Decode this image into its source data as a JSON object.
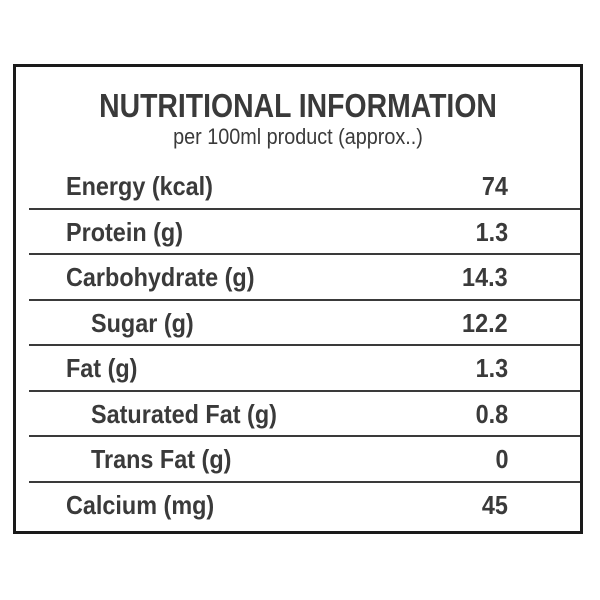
{
  "panel": {
    "title": "NUTRITIONAL INFORMATION",
    "subtitle": "per 100ml product (approx..)"
  },
  "rows": [
    {
      "label": "Energy (kcal)",
      "value": "74",
      "indent": false
    },
    {
      "label": "Protein (g)",
      "value": "1.3",
      "indent": false
    },
    {
      "label": "Carbohydrate (g)",
      "value": "14.3",
      "indent": false
    },
    {
      "label": "Sugar (g)",
      "value": "12.2",
      "indent": true
    },
    {
      "label": "Fat (g)",
      "value": "1.3",
      "indent": false
    },
    {
      "label": "Saturated Fat (g)",
      "value": "0.8",
      "indent": true
    },
    {
      "label": "Trans Fat (g)",
      "value": "0",
      "indent": true
    },
    {
      "label": "Calcium (mg)",
      "value": "45",
      "indent": false
    }
  ],
  "colors": {
    "text": "#3a3a3a",
    "border": "#1a1a1a",
    "background": "#ffffff"
  }
}
